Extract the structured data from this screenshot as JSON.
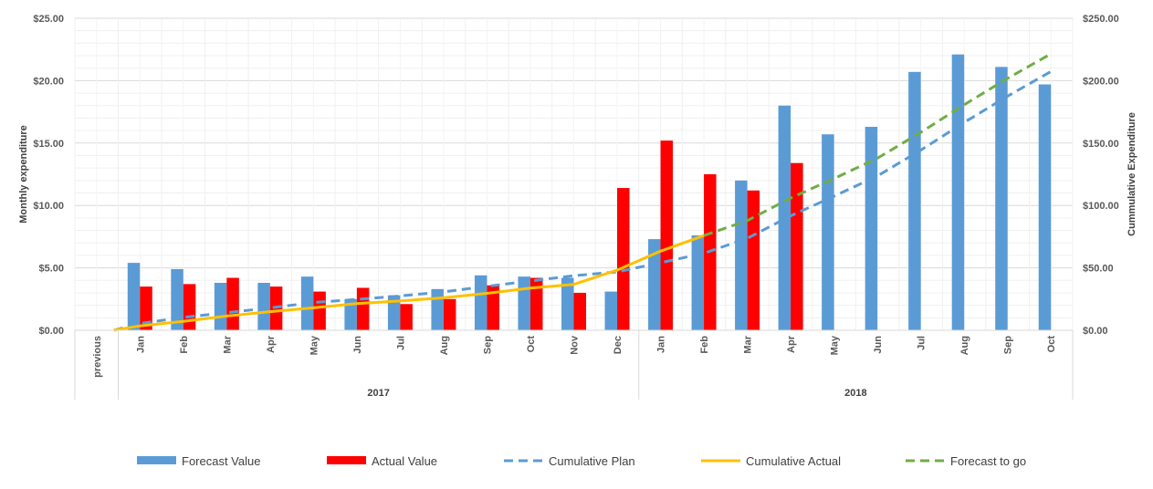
{
  "chart_data": {
    "type": "bar",
    "categories": [
      "previous",
      "Jan",
      "Feb",
      "Mar",
      "Apr",
      "May",
      "Jun",
      "Jul",
      "Aug",
      "Sep",
      "Oct",
      "Nov",
      "Dec",
      "Jan",
      "Feb",
      "Mar",
      "Apr",
      "May",
      "Jun",
      "Jul",
      "Aug",
      "Sep",
      "Oct"
    ],
    "groups": [
      {
        "label": "2017",
        "from": 1,
        "to": 12
      },
      {
        "label": "2018",
        "from": 13,
        "to": 22
      }
    ],
    "y_left": {
      "label": "Monthly expenditure",
      "ylim": [
        0,
        25
      ],
      "ticks": [
        0,
        5,
        10,
        15,
        20,
        25
      ],
      "tick_labels": [
        "$0.00",
        "$5.00",
        "$10.00",
        "$15.00",
        "$20.00",
        "$25.00"
      ]
    },
    "y_right": {
      "label": "Cummulative Expenditure",
      "ylim": [
        0,
        250
      ],
      "ticks": [
        0,
        50,
        100,
        150,
        200,
        250
      ],
      "tick_labels": [
        "$0.00",
        "$50.00",
        "$100.00",
        "$150.00",
        "$200.00",
        "$250.00"
      ]
    },
    "grid": true,
    "legend_position": "bottom",
    "series": [
      {
        "name": "Forecast Value",
        "kind": "bar",
        "axis": "left",
        "color": "#5b9bd5",
        "values": [
          null,
          5.4,
          4.9,
          3.8,
          3.8,
          4.3,
          2.5,
          2.8,
          3.3,
          4.4,
          4.3,
          4.2,
          3.1,
          7.3,
          7.6,
          12.0,
          18.0,
          15.7,
          16.3,
          20.7,
          22.1,
          21.1,
          19.7
        ]
      },
      {
        "name": "Actual Value",
        "kind": "bar",
        "axis": "left",
        "color": "#ff0000",
        "values": [
          null,
          3.5,
          3.7,
          4.2,
          3.5,
          3.1,
          3.4,
          2.1,
          2.5,
          3.6,
          4.2,
          3.0,
          11.4,
          15.2,
          12.5,
          11.2,
          13.4,
          null,
          null,
          null,
          null,
          null,
          null
        ]
      },
      {
        "name": "Cumulative Plan",
        "kind": "line",
        "dash": true,
        "axis": "right",
        "color": "#5b9bd5",
        "values": [
          0,
          5.4,
          10.3,
          14.1,
          17.9,
          22.2,
          24.7,
          27.5,
          30.8,
          35.2,
          39.5,
          43.7,
          46.8,
          54.1,
          61.7,
          73.7,
          91.7,
          107.4,
          123.7,
          144.4,
          166.5,
          187.6,
          207.3
        ]
      },
      {
        "name": "Cumulative Actual",
        "kind": "line",
        "dash": false,
        "axis": "right",
        "color": "#ffc000",
        "values": [
          0,
          3.5,
          7.2,
          11.4,
          14.9,
          18.0,
          21.4,
          23.5,
          26.0,
          29.6,
          33.8,
          36.8,
          48.2,
          63.4,
          75.9,
          null,
          null,
          null,
          null,
          null,
          null,
          null,
          null
        ]
      },
      {
        "name": "Forecast to go",
        "kind": "line",
        "dash": true,
        "axis": "right",
        "color": "#70ad47",
        "values": [
          null,
          null,
          null,
          null,
          null,
          null,
          null,
          null,
          null,
          null,
          null,
          null,
          null,
          null,
          75.9,
          87.9,
          105.9,
          121.6,
          137.9,
          158.6,
          180.7,
          201.8,
          221.5
        ]
      }
    ]
  }
}
